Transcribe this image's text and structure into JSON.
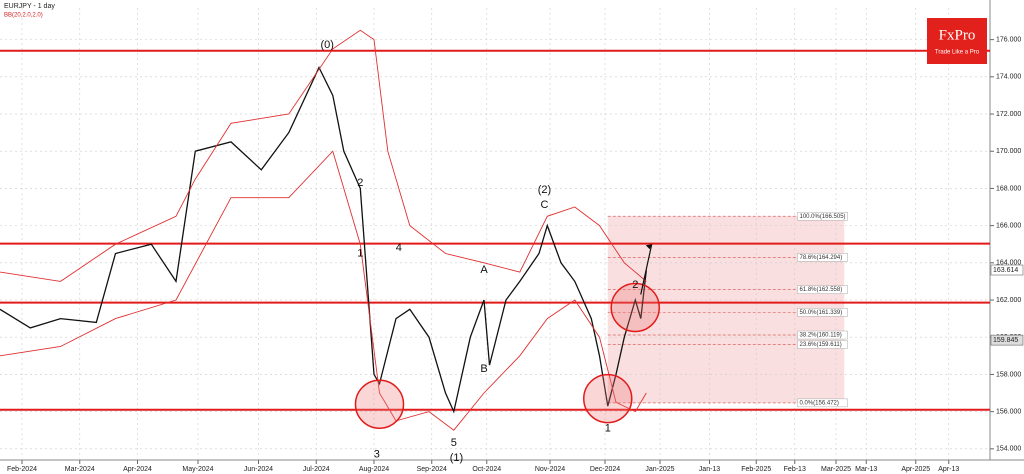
{
  "chart_data": {
    "type": "line",
    "title": "EURJPY - 1 day",
    "subtitle": "BB(20,2.0,2.0)",
    "logo": {
      "name": "FxPro",
      "tagline": "Trade Like a Pro"
    },
    "xlim": [
      0,
      360
    ],
    "ylim": [
      153.4,
      177.7
    ],
    "xticks": [
      {
        "value": 8,
        "label": "Feb-2024"
      },
      {
        "value": 29,
        "label": "Mar-2024"
      },
      {
        "value": 50,
        "label": "Apr-2024"
      },
      {
        "value": 72,
        "label": "May-2024"
      },
      {
        "value": 94,
        "label": "Jun-2024"
      },
      {
        "value": 115,
        "label": "Jul-2024"
      },
      {
        "value": 136,
        "label": "Aug-2024"
      },
      {
        "value": 157,
        "label": "Sep-2024"
      },
      {
        "value": 177,
        "label": "Oct-2024"
      },
      {
        "value": 200,
        "label": "Nov-2024"
      },
      {
        "value": 220,
        "label": "Dec-2024"
      },
      {
        "value": 240,
        "label": "Jan-2025"
      },
      {
        "value": 258,
        "label": "Jan-13"
      },
      {
        "value": 275,
        "label": "Feb-2025"
      },
      {
        "value": 289,
        "label": "Feb-13"
      },
      {
        "value": 304,
        "label": "Mar-2025"
      },
      {
        "value": 315,
        "label": "Mar-13"
      },
      {
        "value": 333,
        "label": "Apr-2025"
      },
      {
        "value": 345,
        "label": "Apr-13"
      }
    ],
    "yticks": [
      {
        "value": 154,
        "label": "154.000"
      },
      {
        "value": 156,
        "label": "156.000"
      },
      {
        "value": 158,
        "label": "158.000"
      },
      {
        "value": 160,
        "label": "160.000"
      },
      {
        "value": 162,
        "label": "162.000"
      },
      {
        "value": 164,
        "label": "164.000"
      },
      {
        "value": 166,
        "label": "166.000"
      },
      {
        "value": 168,
        "label": "168.000"
      },
      {
        "value": 170,
        "label": "170.000"
      },
      {
        "value": 172,
        "label": "172.000"
      },
      {
        "value": 174,
        "label": "174.000"
      },
      {
        "value": 176,
        "label": "176.000"
      }
    ],
    "grid": true,
    "series": [
      {
        "color": "#111111",
        "x": [
          0,
          11,
          22,
          35,
          42,
          55,
          64,
          71,
          84,
          95,
          105,
          116,
          121,
          125,
          131,
          136,
          138,
          144,
          149,
          156,
          162,
          165,
          171,
          176,
          178,
          184,
          189,
          196,
          199,
          204,
          209,
          215,
          218,
          221,
          224,
          227,
          231,
          233,
          235
        ],
        "values": [
          161.5,
          160.5,
          161,
          160.8,
          164.5,
          165,
          163,
          170,
          170.5,
          169,
          171,
          174.5,
          173,
          170,
          168,
          158,
          157.5,
          161,
          161.5,
          160,
          157,
          156,
          160,
          162,
          158.5,
          162,
          163,
          164.5,
          166,
          164,
          163,
          161,
          159,
          156.3,
          158,
          160,
          162,
          161,
          163.6
        ]
      },
      {
        "color": "#e03030",
        "x": [
          0,
          22,
          42,
          64,
          71,
          84,
          105,
          121,
          131,
          136,
          141,
          149,
          162,
          176,
          189,
          199,
          209,
          218,
          227,
          235
        ],
        "values": [
          163.5,
          163,
          165,
          166.5,
          168.5,
          171.5,
          172,
          175.5,
          176.5,
          176,
          170,
          166,
          164.5,
          164,
          163.5,
          166.5,
          167,
          166,
          164,
          163
        ]
      },
      {
        "color": "#e03030",
        "x": [
          0,
          22,
          42,
          64,
          84,
          105,
          121,
          131,
          138,
          144,
          156,
          165,
          176,
          189,
          199,
          209,
          218,
          224,
          231,
          235
        ],
        "values": [
          159,
          159.5,
          161,
          162,
          167.5,
          167.5,
          170,
          165,
          157,
          155.5,
          156,
          155,
          157,
          159,
          161,
          162,
          160,
          156.5,
          156,
          157
        ]
      }
    ],
    "levels": [
      175.4,
      165.03,
      161.86,
      156.1
    ],
    "fib": [
      {
        "value": 166.505,
        "label": "100.0%(166.505)"
      },
      {
        "value": 164.294,
        "label": "78.6%(164.294)"
      },
      {
        "value": 162.558,
        "label": "61.8%(162.558)"
      },
      {
        "value": 161.339,
        "label": "50.0%(161.339)"
      },
      {
        "value": 160.119,
        "label": "38.2%(160.119)"
      },
      {
        "value": 159.611,
        "label": "23.6%(159.611)"
      },
      {
        "value": 156.472,
        "label": "0.0%(156.472)"
      }
    ],
    "price_labels": [
      {
        "value": 163.614,
        "label": "163.614"
      },
      {
        "value": 159.845,
        "label": "159.845"
      }
    ],
    "annotations": [
      "(0)",
      "2",
      "1",
      "4",
      "3",
      "5",
      "(1)",
      "A",
      "B",
      "C",
      "(2)",
      "1",
      "2"
    ]
  }
}
